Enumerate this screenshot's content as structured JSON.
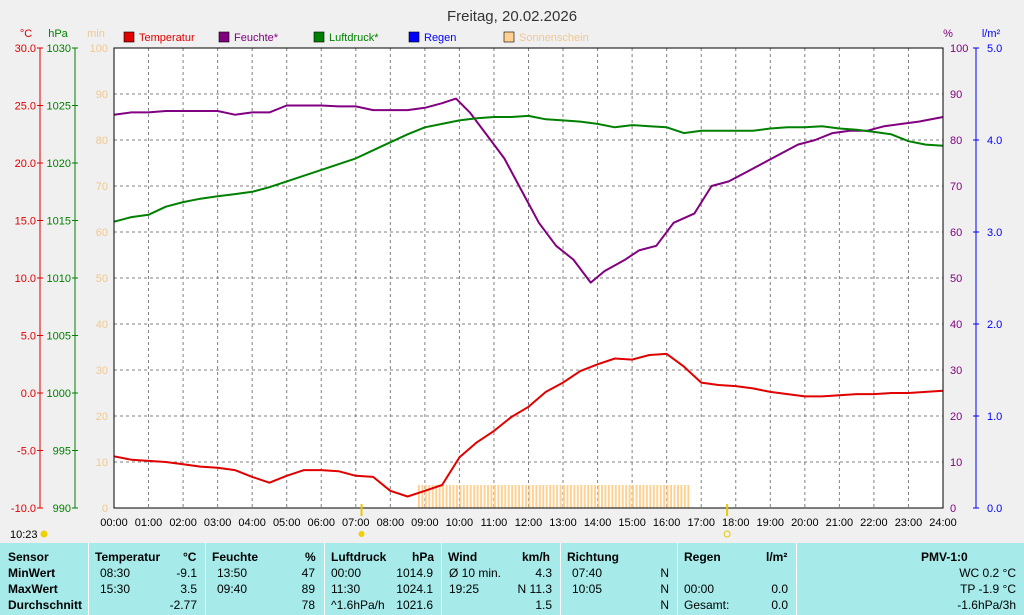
{
  "title": "Freitag, 20.02.2026",
  "unit_labels": {
    "temp": "°C",
    "pressure": "hPa",
    "sun": "min",
    "humidity": "%",
    "rain": "l/m²"
  },
  "legend": [
    {
      "label": "Temperatur",
      "color": "#e00000"
    },
    {
      "label": "Feuchte*",
      "color": "#800080"
    },
    {
      "label": "Luftdruck*",
      "color": "#008000"
    },
    {
      "label": "Regen",
      "color": "#0000ff"
    },
    {
      "label": "Sonnenschein",
      "color": "#ffd090"
    }
  ],
  "axes": {
    "temp_ticks": [
      "30.0",
      "25.0",
      "20.0",
      "15.0",
      "10.0",
      "5.0",
      "0.0",
      "-5.0",
      "-10.0"
    ],
    "pressure_ticks": [
      "1030",
      "1025",
      "1020",
      "1015",
      "1010",
      "1005",
      "1000",
      "995",
      "990"
    ],
    "sun_ticks": [
      "100",
      "90",
      "80",
      "70",
      "60",
      "50",
      "40",
      "30",
      "20",
      "10",
      "0"
    ],
    "humidity_ticks": [
      "100",
      "90",
      "80",
      "70",
      "60",
      "50",
      "40",
      "30",
      "20",
      "10",
      "0"
    ],
    "rain_ticks": [
      "5.0",
      "4.0",
      "3.0",
      "2.0",
      "1.0",
      "0.0"
    ],
    "x_ticks": [
      "00:00",
      "01:00",
      "02:00",
      "03:00",
      "04:00",
      "05:00",
      "06:00",
      "07:00",
      "08:00",
      "09:00",
      "10:00",
      "11:00",
      "12:00",
      "13:00",
      "14:00",
      "15:00",
      "16:00",
      "17:00",
      "18:00",
      "19:00",
      "20:00",
      "21:00",
      "22:00",
      "23:00",
      "24:00"
    ],
    "time_stamp": "10:23",
    "sunrise_mark": "07:10",
    "sunset_mark": "17:45"
  },
  "colors": {
    "temperature": "#e00000",
    "humidity": "#800080",
    "pressure": "#008000",
    "sun": "#ffd090",
    "grid": "#808080"
  },
  "chart_data": {
    "type": "line",
    "title": "Freitag, 20.02.2026",
    "x_unit": "hours",
    "grid": true,
    "legend_position": "top",
    "series": [
      {
        "name": "Temperatur",
        "unit": "°C",
        "ylim": [
          -10,
          30
        ],
        "x": [
          0,
          0.5,
          1,
          1.5,
          2,
          2.5,
          3,
          3.5,
          4,
          4.5,
          5,
          5.5,
          6,
          6.5,
          7,
          7.5,
          8,
          8.5,
          9,
          9.5,
          10,
          10.5,
          11,
          11.5,
          12,
          12.5,
          13,
          13.5,
          14,
          14.5,
          15,
          15.5,
          16,
          16.5,
          17,
          17.5,
          18,
          18.5,
          19,
          19.5,
          20,
          20.5,
          21,
          21.5,
          22,
          22.5,
          23,
          23.5,
          24
        ],
        "values": [
          -5.5,
          -5.8,
          -5.9,
          -6.0,
          -6.2,
          -6.4,
          -6.5,
          -6.7,
          -7.3,
          -7.8,
          -7.2,
          -6.7,
          -6.7,
          -6.8,
          -7.2,
          -7.3,
          -8.5,
          -9.0,
          -8.5,
          -8.0,
          -5.6,
          -4.3,
          -3.3,
          -2.1,
          -1.2,
          0.1,
          0.9,
          1.9,
          2.5,
          3.0,
          2.9,
          3.3,
          3.4,
          2.3,
          0.9,
          0.7,
          0.6,
          0.4,
          0.1,
          -0.1,
          -0.3,
          -0.3,
          -0.2,
          -0.1,
          -0.1,
          0.0,
          0.0,
          0.1,
          0.2
        ]
      },
      {
        "name": "Feuchte*",
        "unit": "%",
        "ylim": [
          0,
          100
        ],
        "x": [
          0,
          0.5,
          1,
          1.5,
          2,
          2.5,
          3,
          3.5,
          4,
          4.5,
          5,
          5.5,
          6,
          6.5,
          7,
          7.5,
          8,
          8.5,
          9,
          9.5,
          9.9,
          10.3,
          10.8,
          11.3,
          11.8,
          12.3,
          12.8,
          13.3,
          13.8,
          14.2,
          14.8,
          15.2,
          15.7,
          16.2,
          16.8,
          17.3,
          17.8,
          18.3,
          18.8,
          19.3,
          19.8,
          20.3,
          20.8,
          21.3,
          21.8,
          22.3,
          22.8,
          23.3,
          24
        ],
        "values": [
          85.5,
          86,
          86,
          86.3,
          86.3,
          86.3,
          86.3,
          85.5,
          86,
          86,
          87.5,
          87.5,
          87.5,
          87.3,
          87.3,
          86.5,
          86.5,
          86.5,
          87,
          88,
          89,
          86,
          81,
          76,
          69,
          62,
          57,
          54,
          49,
          51.5,
          54,
          56,
          57,
          62,
          64,
          70,
          71,
          73,
          75,
          77,
          79,
          80,
          81.5,
          82,
          82,
          83,
          83.5,
          84,
          85
        ]
      },
      {
        "name": "Luftdruck*",
        "unit": "hPa",
        "ylim": [
          990,
          1030
        ],
        "x": [
          0,
          0.5,
          1,
          1.5,
          2,
          2.5,
          3,
          3.5,
          4,
          4.5,
          5,
          5.5,
          6,
          6.5,
          7,
          7.5,
          8,
          8.5,
          9,
          9.5,
          10,
          10.5,
          11,
          11.5,
          12,
          12.5,
          13,
          13.5,
          14,
          14.5,
          15,
          15.5,
          16,
          16.5,
          17,
          17.5,
          18,
          18.5,
          19,
          19.5,
          20,
          20.5,
          21,
          21.5,
          22,
          22.5,
          23,
          23.5,
          24
        ],
        "values": [
          1014.9,
          1015.3,
          1015.5,
          1016.2,
          1016.6,
          1016.9,
          1017.1,
          1017.3,
          1017.5,
          1017.9,
          1018.4,
          1018.9,
          1019.4,
          1019.9,
          1020.4,
          1021.1,
          1021.8,
          1022.5,
          1023.1,
          1023.4,
          1023.7,
          1023.9,
          1024.0,
          1024.0,
          1024.1,
          1023.8,
          1023.7,
          1023.6,
          1023.4,
          1023.1,
          1023.3,
          1023.2,
          1023.1,
          1022.6,
          1022.8,
          1022.8,
          1022.8,
          1022.8,
          1023.0,
          1023.1,
          1023.1,
          1023.2,
          1023.0,
          1022.9,
          1022.7,
          1022.5,
          1021.9,
          1021.6,
          1021.5
        ]
      },
      {
        "name": "Sonnenschein",
        "unit": "min",
        "type": "bar",
        "ylim": [
          0,
          100
        ],
        "start": 8.8,
        "end": 16.65,
        "value": 5
      },
      {
        "name": "Regen",
        "unit": "l/m²",
        "ylim": [
          0,
          5
        ],
        "values": [
          0
        ]
      }
    ]
  },
  "table": {
    "headers": {
      "sensor": "Sensor",
      "temperature": "Temperatur",
      "temp_unit": "°C",
      "humidity": "Feuchte",
      "hum_unit": "%",
      "pressure": "Luftdruck",
      "press_unit": "hPa",
      "wind": "Wind",
      "wind_unit": "km/h",
      "direction": "Richtung",
      "rain": "Regen",
      "rain_unit": "l/m²",
      "pmv": "PMV-1:0"
    },
    "rows": [
      {
        "label": "MinWert",
        "temp_time": "08:30",
        "temp_val": "-9.1",
        "hum_time": "13:50",
        "hum_val": "47",
        "press_time": "00:00",
        "press_val": "1014.9",
        "wind_time": "Ø 10 min.",
        "wind_val": "4.3",
        "dir_time": "07:40",
        "dir_val": "N",
        "rain_time": "",
        "rain_val": "",
        "pmv": "WC 0.2 °C"
      },
      {
        "label": "MaxWert",
        "temp_time": "15:30",
        "temp_val": "3.5",
        "hum_time": "09:40",
        "hum_val": "89",
        "press_time": "11:30",
        "press_val": "1024.1",
        "wind_time": "19:25",
        "wind_val": "N 11.3",
        "dir_time": "10:05",
        "dir_val": "N",
        "rain_time": "00:00",
        "rain_val": "0.0",
        "pmv": "TP -1.9 °C"
      },
      {
        "label": "Durchschnitt",
        "temp_time": "",
        "temp_val": "-2.77",
        "hum_time": "",
        "hum_val": "78",
        "press_time": "^1.6hPa/h",
        "press_val": "1021.6",
        "wind_time": "",
        "wind_val": "1.5",
        "dir_time": "",
        "dir_val": "N",
        "rain_time": "Gesamt:",
        "rain_val": "0.0",
        "pmv": "-1.6hPa/3h"
      }
    ]
  }
}
